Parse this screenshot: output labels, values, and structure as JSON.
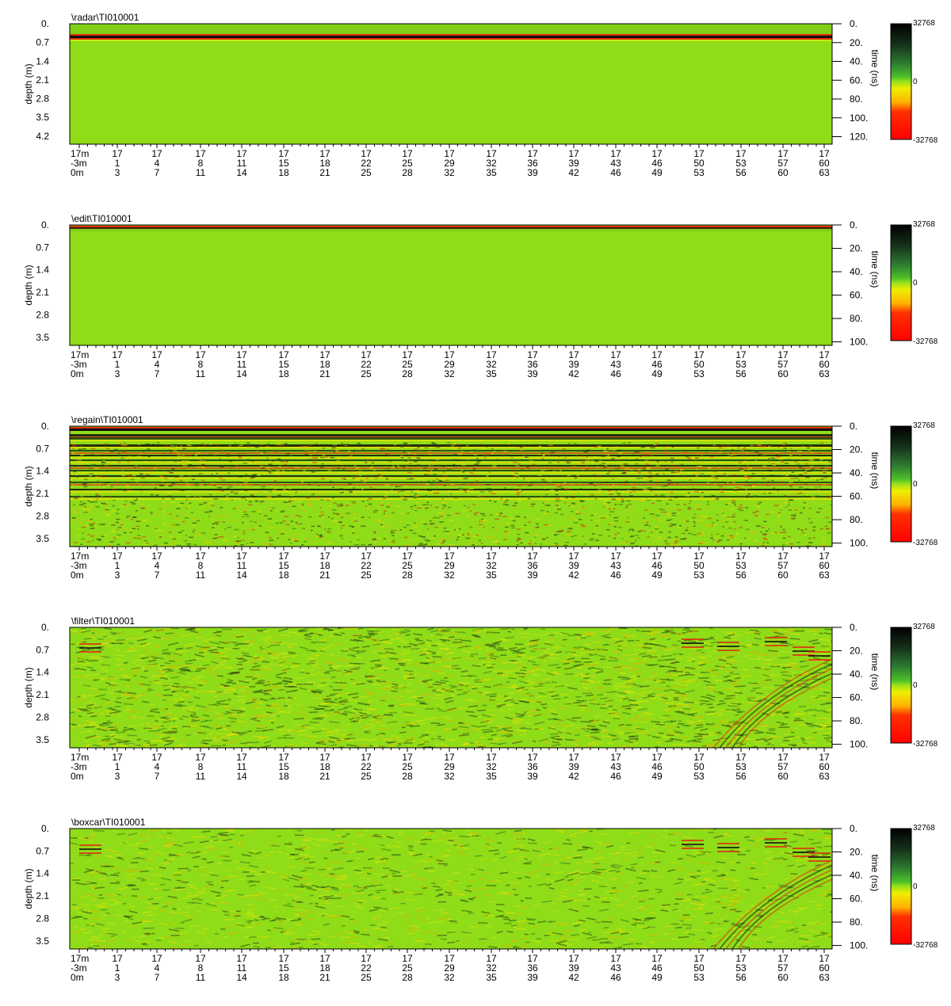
{
  "chart_data": [
    {
      "type": "heatmap",
      "title": "\\radar\\TI010001",
      "ylabel": "depth (m)",
      "y2label": "time (ns)",
      "depth_ticks": [
        "0.",
        "0.7",
        "1.4",
        "2.1",
        "2.8",
        "3.5",
        "4.2"
      ],
      "depth_range": [
        0,
        4.5
      ],
      "time_ticks": [
        "0.",
        "20.",
        "40.",
        "60.",
        "80.",
        "100.",
        "120."
      ],
      "time_range": [
        0,
        128
      ],
      "x_rows": [
        [
          "17m",
          "17",
          "17",
          "17",
          "17",
          "17",
          "17",
          "17",
          "17",
          "17",
          "17",
          "17",
          "17",
          "17",
          "17",
          "17",
          "17",
          "17",
          "17"
        ],
        [
          "-3m",
          "1",
          "4",
          "8",
          "11",
          "15",
          "18",
          "22",
          "25",
          "29",
          "32",
          "36",
          "39",
          "43",
          "46",
          "50",
          "53",
          "57",
          "60"
        ],
        [
          "0m",
          "3",
          "7",
          "11",
          "14",
          "18",
          "21",
          "25",
          "28",
          "32",
          "35",
          "39",
          "42",
          "46",
          "49",
          "53",
          "56",
          "60",
          "63"
        ]
      ],
      "colorbar": {
        "max": "32768",
        "mid": "0",
        "min": "-32768"
      }
    },
    {
      "type": "heatmap",
      "title": "\\edit\\TI010001",
      "ylabel": "depth (m)",
      "y2label": "time (ns)",
      "depth_ticks": [
        "0.",
        "0.7",
        "1.4",
        "2.1",
        "2.8",
        "3.5"
      ],
      "depth_range": [
        0,
        3.75
      ],
      "time_ticks": [
        "0.",
        "20.",
        "40.",
        "60.",
        "80.",
        "100."
      ],
      "time_range": [
        0,
        103
      ],
      "x_rows": [
        [
          "17m",
          "17",
          "17",
          "17",
          "17",
          "17",
          "17",
          "17",
          "17",
          "17",
          "17",
          "17",
          "17",
          "17",
          "17",
          "17",
          "17",
          "17",
          "17"
        ],
        [
          "-3m",
          "1",
          "4",
          "8",
          "11",
          "15",
          "18",
          "22",
          "25",
          "29",
          "32",
          "36",
          "39",
          "43",
          "46",
          "50",
          "53",
          "57",
          "60"
        ],
        [
          "0m",
          "3",
          "7",
          "11",
          "14",
          "18",
          "21",
          "25",
          "28",
          "32",
          "35",
          "39",
          "42",
          "46",
          "49",
          "53",
          "56",
          "60",
          "63"
        ]
      ],
      "colorbar": {
        "max": "32768",
        "mid": "0",
        "min": "-32768"
      }
    },
    {
      "type": "heatmap",
      "title": "\\regain\\TI010001",
      "ylabel": "depth (m)",
      "y2label": "time (ns)",
      "depth_ticks": [
        "0.",
        "0.7",
        "1.4",
        "2.1",
        "2.8",
        "3.5"
      ],
      "depth_range": [
        0,
        3.75
      ],
      "time_ticks": [
        "0.",
        "20.",
        "40.",
        "60.",
        "80.",
        "100."
      ],
      "time_range": [
        0,
        103
      ],
      "x_rows": [
        [
          "17m",
          "17",
          "17",
          "17",
          "17",
          "17",
          "17",
          "17",
          "17",
          "17",
          "17",
          "17",
          "17",
          "17",
          "17",
          "17",
          "17",
          "17",
          "17"
        ],
        [
          "-3m",
          "1",
          "4",
          "8",
          "11",
          "15",
          "18",
          "22",
          "25",
          "29",
          "32",
          "36",
          "39",
          "43",
          "46",
          "50",
          "53",
          "57",
          "60"
        ],
        [
          "0m",
          "3",
          "7",
          "11",
          "14",
          "18",
          "21",
          "25",
          "28",
          "32",
          "35",
          "39",
          "42",
          "46",
          "49",
          "53",
          "56",
          "60",
          "63"
        ]
      ],
      "colorbar": {
        "max": "32768",
        "mid": "0",
        "min": "-32768"
      }
    },
    {
      "type": "heatmap",
      "title": "\\filter\\TI010001",
      "ylabel": "depth (m)",
      "y2label": "time (ns)",
      "depth_ticks": [
        "0.",
        "0.7",
        "1.4",
        "2.1",
        "2.8",
        "3.5"
      ],
      "depth_range": [
        0,
        3.75
      ],
      "time_ticks": [
        "0.",
        "20.",
        "40.",
        "60.",
        "80.",
        "100."
      ],
      "time_range": [
        0,
        103
      ],
      "x_rows": [
        [
          "17m",
          "17",
          "17",
          "17",
          "17",
          "17",
          "17",
          "17",
          "17",
          "17",
          "17",
          "17",
          "17",
          "17",
          "17",
          "17",
          "17",
          "17",
          "17"
        ],
        [
          "-3m",
          "1",
          "4",
          "8",
          "11",
          "15",
          "18",
          "22",
          "25",
          "29",
          "32",
          "36",
          "39",
          "43",
          "46",
          "50",
          "53",
          "57",
          "60"
        ],
        [
          "0m",
          "3",
          "7",
          "11",
          "14",
          "18",
          "21",
          "25",
          "28",
          "32",
          "35",
          "39",
          "42",
          "46",
          "49",
          "53",
          "56",
          "60",
          "63"
        ]
      ],
      "colorbar": {
        "max": "32768",
        "mid": "0",
        "min": "-32768"
      }
    },
    {
      "type": "heatmap",
      "title": "\\boxcar\\TI010001",
      "ylabel": "depth (m)",
      "y2label": "time (ns)",
      "depth_ticks": [
        "0.",
        "0.7",
        "1.4",
        "2.1",
        "2.8",
        "3.5"
      ],
      "depth_range": [
        0,
        3.75
      ],
      "time_ticks": [
        "0.",
        "20.",
        "40.",
        "60.",
        "80.",
        "100."
      ],
      "time_range": [
        0,
        103
      ],
      "x_rows": [
        [
          "17m",
          "17",
          "17",
          "17",
          "17",
          "17",
          "17",
          "17",
          "17",
          "17",
          "17",
          "17",
          "17",
          "17",
          "17",
          "17",
          "17",
          "17",
          "17"
        ],
        [
          "-3m",
          "1",
          "4",
          "8",
          "11",
          "15",
          "18",
          "22",
          "25",
          "29",
          "32",
          "36",
          "39",
          "43",
          "46",
          "50",
          "53",
          "57",
          "60"
        ],
        [
          "0m",
          "3",
          "7",
          "11",
          "14",
          "18",
          "21",
          "25",
          "28",
          "32",
          "35",
          "39",
          "42",
          "46",
          "49",
          "53",
          "56",
          "60",
          "63"
        ]
      ],
      "colorbar": {
        "max": "32768",
        "mid": "0",
        "min": "-32768"
      }
    }
  ],
  "colors": {
    "background": "#8fdc18",
    "colorbar": [
      "#000000",
      "#1a3a10",
      "#2e7d32",
      "#45b52a",
      "#9ae01c",
      "#e8e800",
      "#ffb000",
      "#ff2a00",
      "#ff0000"
    ],
    "band_dark": "#101010",
    "band_red": "#e02a10",
    "band_yellow": "#f0e000"
  }
}
